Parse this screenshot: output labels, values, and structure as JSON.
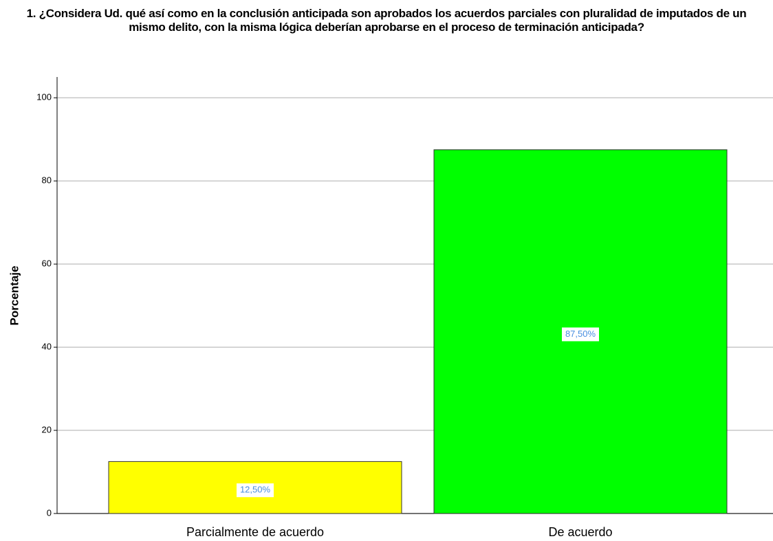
{
  "chart_data": {
    "type": "bar",
    "title": "1. ¿Considera Ud. qué así como en la conclusión anticipada son aprobados los acuerdos parciales con pluralidad de imputados de un mismo delito, con la misma lógica deberían aprobarse en el proceso de terminación anticipada?",
    "y_label": "Porcentaje",
    "categories": [
      "Parcialmente de acuerdo",
      "De acuerdo"
    ],
    "values": [
      12.5,
      87.5
    ],
    "value_labels": [
      "12,50%",
      "87,50%"
    ],
    "colors": [
      "#ffff00",
      "#00ff00"
    ],
    "ylim": [
      0,
      105
    ],
    "yticks": [
      0,
      20,
      40,
      60,
      80,
      100
    ],
    "grid": true
  }
}
